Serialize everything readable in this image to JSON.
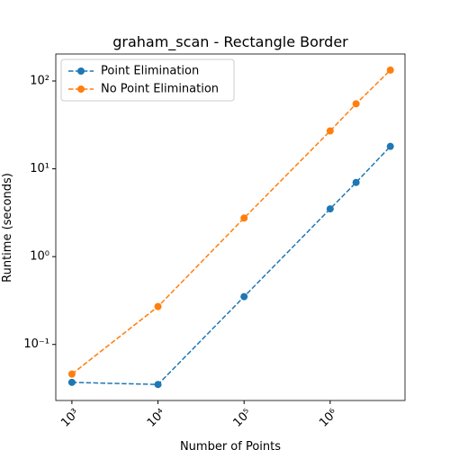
{
  "chart_data": {
    "type": "line",
    "title": "graham_scan - Rectangle Border",
    "xlabel": "Number of Points",
    "ylabel": "Runtime (seconds)",
    "x": [
      1000,
      10000,
      100000,
      1000000,
      2000000,
      5000000
    ],
    "series": [
      {
        "name": "Point Elimination",
        "color": "#1f77b4",
        "values": [
          0.037,
          0.035,
          0.35,
          3.5,
          7.0,
          18
        ]
      },
      {
        "name": "No Point Elimination",
        "color": "#ff7f0e",
        "values": [
          0.046,
          0.27,
          2.75,
          27,
          55,
          133
        ]
      }
    ],
    "xscale": "log",
    "yscale": "log",
    "xlim": [
      650,
      7400000
    ],
    "ylim": [
      0.023,
      203
    ],
    "xticks": [
      {
        "value": 1000,
        "label": "10³"
      },
      {
        "value": 10000,
        "label": "10⁴"
      },
      {
        "value": 100000,
        "label": "10⁵"
      },
      {
        "value": 1000000,
        "label": "10⁶"
      }
    ],
    "yticks": [
      {
        "value": 0.1,
        "label": "10⁻¹"
      },
      {
        "value": 1,
        "label": "10⁰"
      },
      {
        "value": 10,
        "label": "10¹"
      },
      {
        "value": 100,
        "label": "10²"
      }
    ],
    "legend": "upper left",
    "grid": false
  }
}
